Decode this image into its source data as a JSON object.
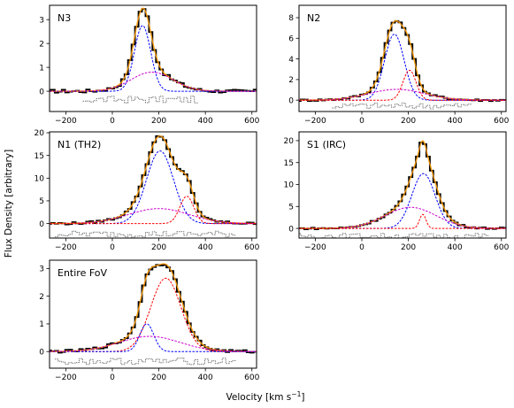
{
  "figure": {
    "xlabel": "Velocity [km s",
    "xlabel_sup": "−1",
    "xlabel_end": "]",
    "ylabel": "Flux Density [arbitrary]"
  },
  "chart_data": [
    {
      "type": "line",
      "title": "N3",
      "xlim": [
        -270,
        620
      ],
      "ylim": [
        -0.85,
        3.6
      ],
      "xticks": [
        -200,
        0,
        200,
        400,
        600
      ],
      "yticks": [
        0,
        1,
        2,
        3
      ],
      "data_min": -270,
      "data_max": 620,
      "components": [
        {
          "color": "#0000ff",
          "amp": 2.75,
          "center": 130,
          "sigma": 35
        },
        {
          "color": "#cc00cc",
          "amp": 0.8,
          "center": 170,
          "sigma": 90
        }
      ],
      "resid_base": -0.35,
      "resid_amp": 0.15,
      "resid_range": [
        -130,
        360
      ],
      "noise": 0.07
    },
    {
      "type": "line",
      "title": "N2",
      "xlim": [
        -270,
        620
      ],
      "ylim": [
        -1.1,
        9.2
      ],
      "xticks": [
        -200,
        0,
        200,
        400,
        600
      ],
      "yticks": [
        0,
        2,
        4,
        6,
        8
      ],
      "data_min": -270,
      "data_max": 620,
      "components": [
        {
          "color": "#0000ff",
          "amp": 6.4,
          "center": 140,
          "sigma": 42
        },
        {
          "color": "#cc00cc",
          "amp": 1.05,
          "center": 150,
          "sigma": 120
        },
        {
          "color": "#ff0000",
          "amp": 2.9,
          "center": 205,
          "sigma": 28
        }
      ],
      "resid_base": -0.55,
      "resid_amp": 0.3,
      "resid_range": [
        -130,
        470
      ],
      "noise": 0.1
    },
    {
      "type": "line",
      "title": "N1 (TH2)",
      "xlim": [
        -270,
        620
      ],
      "ylim": [
        -3.2,
        20.2
      ],
      "xticks": [
        -200,
        0,
        200,
        400,
        600
      ],
      "yticks": [
        0,
        5,
        10,
        15,
        20
      ],
      "data_min": -270,
      "data_max": 620,
      "components": [
        {
          "color": "#0000ff",
          "amp": 16.0,
          "center": 205,
          "sigma": 58
        },
        {
          "color": "#cc00cc",
          "amp": 3.3,
          "center": 200,
          "sigma": 130
        },
        {
          "color": "#ff0000",
          "amp": 6.0,
          "center": 320,
          "sigma": 30
        }
      ],
      "resid_base": -2.3,
      "resid_amp": 0.7,
      "resid_range": [
        -250,
        530
      ],
      "noise": 0.25
    },
    {
      "type": "line",
      "title": "S1 (IRC)",
      "xlim": [
        -270,
        620
      ],
      "ylim": [
        -2.2,
        22.0
      ],
      "xticks": [
        -200,
        0,
        200,
        400,
        600
      ],
      "yticks": [
        0,
        5,
        10,
        15,
        20
      ],
      "data_min": -270,
      "data_max": 620,
      "components": [
        {
          "color": "#0000ff",
          "amp": 12.5,
          "center": 265,
          "sigma": 50
        },
        {
          "color": "#cc00cc",
          "amp": 4.8,
          "center": 210,
          "sigma": 110
        },
        {
          "color": "#ff0000",
          "amp": 3.2,
          "center": 262,
          "sigma": 14
        }
      ],
      "resid_base": -1.7,
      "resid_amp": 0.6,
      "resid_range": [
        -270,
        550
      ],
      "noise": 0.2
    },
    {
      "type": "line",
      "title": "Entire FoV",
      "xlim": [
        -270,
        620
      ],
      "ylim": [
        -0.6,
        3.3
      ],
      "xticks": [
        -200,
        0,
        200,
        400,
        600
      ],
      "yticks": [
        0,
        1,
        2,
        3
      ],
      "data_min": -270,
      "data_max": 620,
      "components": [
        {
          "color": "#ff0000",
          "amp": 2.65,
          "center": 230,
          "sigma": 65
        },
        {
          "color": "#0000ff",
          "amp": 1.0,
          "center": 148,
          "sigma": 30
        },
        {
          "color": "#cc00cc",
          "amp": 0.55,
          "center": 160,
          "sigma": 130
        }
      ],
      "resid_base": -0.35,
      "resid_amp": 0.12,
      "resid_range": [
        -250,
        530
      ],
      "noise": 0.05
    }
  ]
}
